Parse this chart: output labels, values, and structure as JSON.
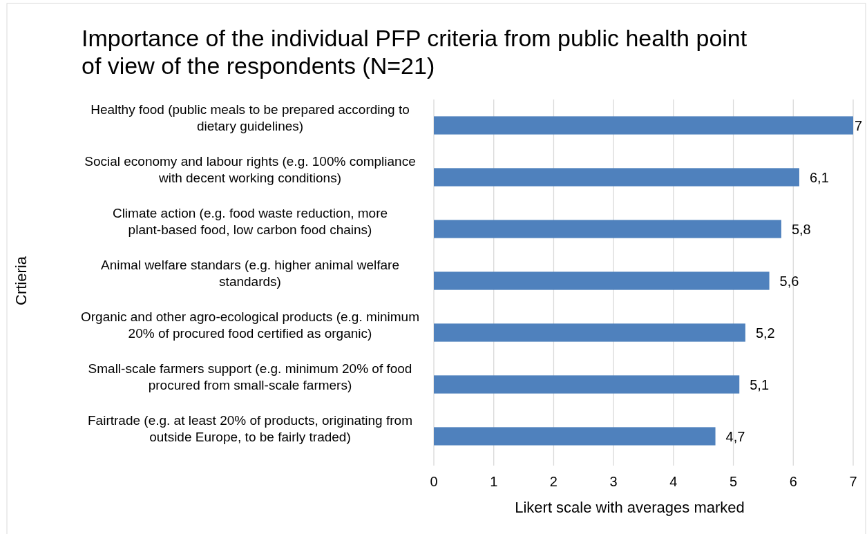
{
  "chart_data": {
    "type": "bar",
    "orientation": "horizontal",
    "title": "Importance of the individual PFP criteria from public health point of view of the respondents (N=21)",
    "xlabel": "Likert scale with averages marked",
    "ylabel": "Crtieria",
    "categories": [
      "Healthy food (public meals to be prepared according to dietary guidelines)",
      "Social economy and labour rights (e.g. 100% compliance with decent working conditions)",
      "Climate action (e.g. food waste reduction, more plant-based food, low carbon food chains)",
      "Animal welfare standars (e.g. higher animal welfare standards)",
      "Organic and other agro-ecological products (e.g. minimum 20% of procured food certified as organic)",
      "Small-scale farmers support (e.g. minimum 20% of food procured from small-scale farmers)",
      "Fairtrade (e.g. at least 20% of products, originating from outside Europe, to be fairly traded)"
    ],
    "values": [
      7,
      6.1,
      5.8,
      5.6,
      5.2,
      5.1,
      4.7
    ],
    "value_labels": [
      "7",
      "6,1",
      "5,8",
      "5,6",
      "5,2",
      "5,1",
      "4,7"
    ],
    "color": "#4f81bd",
    "xlim": [
      0,
      7
    ],
    "xticks": [
      0,
      1,
      2,
      3,
      4,
      5,
      6,
      7
    ],
    "grid": "x"
  }
}
